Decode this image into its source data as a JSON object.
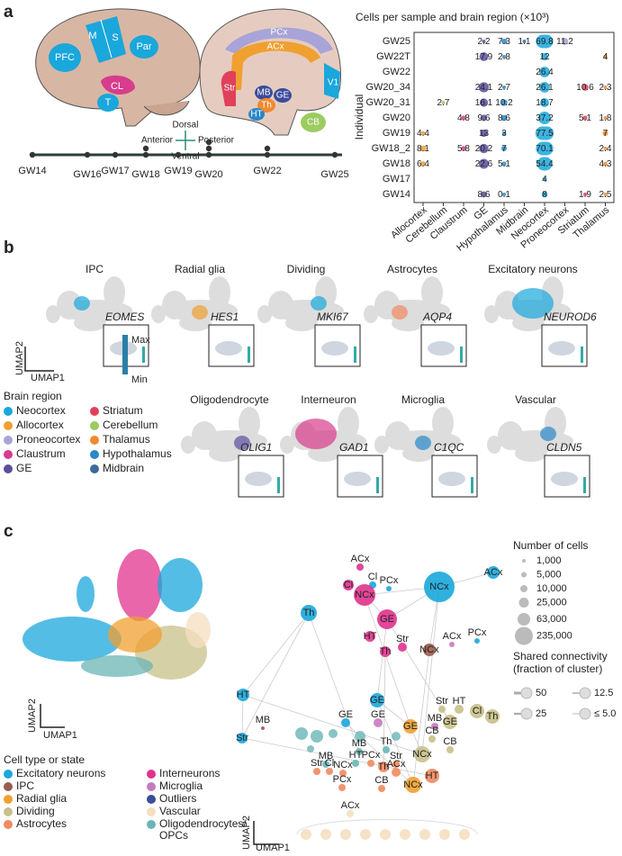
{
  "panel_a": {
    "letter": "a",
    "brain_left": [
      "PFC",
      "M",
      "S",
      "Par",
      "CL",
      "T"
    ],
    "brain_right": [
      "PCx",
      "ACx",
      "Str",
      "MB",
      "GE",
      "Th",
      "HT",
      "V1",
      "CB"
    ],
    "directions": {
      "dorsal": "Dorsal",
      "ventral": "Ventral",
      "anterior": "Anterior",
      "posterior": "Posterior"
    },
    "timeline": [
      "GW14",
      "GW16",
      "GW17",
      "GW18",
      "GW19",
      "GW20",
      "GW22",
      "GW25"
    ],
    "grid": {
      "title": "Cells per sample and brain region (×10³)",
      "y_label": "Individual",
      "columns": [
        "Allocortex",
        "Cerebellum",
        "Claustrum",
        "GE",
        "Hypothalamus",
        "Midbrain",
        "Neocortex",
        "Proneocortex",
        "Striatum",
        "Thalamus"
      ],
      "rows": [
        {
          "name": "GW25",
          "values": [
            null,
            null,
            null,
            2.2,
            7.3,
            1.1,
            69.8,
            11.2,
            null,
            null
          ]
        },
        {
          "name": "GW22T",
          "values": [
            null,
            null,
            null,
            17.9,
            2.8,
            null,
            12,
            null,
            null,
            4
          ]
        },
        {
          "name": "GW22",
          "values": [
            null,
            null,
            null,
            null,
            null,
            null,
            26.4,
            null,
            null,
            null
          ]
        },
        {
          "name": "GW20_34",
          "values": [
            null,
            null,
            null,
            24.1,
            2.7,
            null,
            26.1,
            null,
            10.6,
            2.3
          ]
        },
        {
          "name": "GW20_31",
          "values": [
            null,
            2.7,
            null,
            16.1,
            10.2,
            null,
            18.7,
            null,
            null,
            null
          ]
        },
        {
          "name": "GW20",
          "values": [
            null,
            null,
            4.8,
            9.6,
            8.6,
            null,
            37.2,
            null,
            5.1,
            1.8
          ]
        },
        {
          "name": "GW19",
          "values": [
            4.4,
            null,
            null,
            13,
            3,
            null,
            77.5,
            null,
            null,
            7
          ]
        },
        {
          "name": "GW18_2",
          "values": [
            8.1,
            null,
            5.8,
            20.2,
            7,
            null,
            70.1,
            null,
            null,
            2.4
          ]
        },
        {
          "name": "GW18",
          "values": [
            6.4,
            null,
            null,
            22.6,
            5.1,
            null,
            54.4,
            null,
            null,
            4.3
          ]
        },
        {
          "name": "GW17",
          "values": [
            null,
            null,
            null,
            null,
            null,
            null,
            4,
            null,
            null,
            null
          ]
        },
        {
          "name": "GW14",
          "values": [
            null,
            null,
            null,
            8.6,
            0.1,
            null,
            8,
            null,
            1.9,
            2.5
          ]
        }
      ]
    }
  },
  "panel_b": {
    "letter": "b",
    "panels": [
      {
        "title": "IPC",
        "gene": "EOMES",
        "color": "#1aa7dc"
      },
      {
        "title": "Radial glia",
        "gene": "HES1",
        "color": "#f0a030"
      },
      {
        "title": "Dividing",
        "gene": "MKI67",
        "color": "#1aa7dc"
      },
      {
        "title": "Astrocytes",
        "gene": "AQP4",
        "color": "#f08a60"
      },
      {
        "title": "Excitatory neurons",
        "gene": "NEUROD6",
        "color": "#1aa7dc"
      },
      {
        "title": "Oligodendrocyte",
        "gene": "OLIG1",
        "color": "#5a4f9c"
      },
      {
        "title": "Interneuron",
        "gene": "GAD1",
        "color": "#d83c8c"
      },
      {
        "title": "Microglia",
        "gene": "C1QC",
        "color": "#2a88c8"
      },
      {
        "title": "Vascular",
        "gene": "CLDN5",
        "color": "#2a88c8"
      }
    ],
    "colorbar": {
      "max": "Max",
      "min": "Min"
    },
    "umap2": "UMAP2",
    "umap1": "UMAP1",
    "legend_title": "Brain region",
    "regions": [
      {
        "name": "Neocortex",
        "color": "#1aa7dc"
      },
      {
        "name": "Allocortex",
        "color": "#f0a030"
      },
      {
        "name": "Proneocortex",
        "color": "#a8a4d8"
      },
      {
        "name": "Claustrum",
        "color": "#d83c8c"
      },
      {
        "name": "GE",
        "color": "#5a4f9c"
      },
      {
        "name": "Striatum",
        "color": "#e0405a"
      },
      {
        "name": "Cerebellum",
        "color": "#9ccc60"
      },
      {
        "name": "Thalamus",
        "color": "#f08a30"
      },
      {
        "name": "Hypothalamus",
        "color": "#2a88c8"
      },
      {
        "name": "Midbrain",
        "color": "#3a6a9a"
      }
    ]
  },
  "panel_c": {
    "letter": "c",
    "umap2": "UMAP2",
    "umap1": "UMAP1",
    "legend_title": "Cell type or state",
    "cell_types": [
      {
        "name": [
          "Excitatory neurons"
        ],
        "color": "#1aa7dc"
      },
      {
        "name": [
          "IPC"
        ],
        "color": "#9b5b4f"
      },
      {
        "name": [
          "Radial glia"
        ],
        "color": "#f0a030"
      },
      {
        "name": [
          "Dividing"
        ],
        "color": "#c8c08a"
      },
      {
        "name": [
          "Astrocytes"
        ],
        "color": "#f08a60"
      },
      {
        "name": [
          "Interneurons"
        ],
        "color": "#e0338c"
      },
      {
        "name": [
          "Microglia"
        ],
        "color": "#c77bbf"
      },
      {
        "name": [
          "Outliers"
        ],
        "color": "#3b4c9b"
      },
      {
        "name": [
          "Vascular"
        ],
        "color": "#f5dfc0"
      },
      {
        "name": [
          "Oligodendrocytes/",
          "OPCs"
        ],
        "color": "#6bb5b5"
      }
    ],
    "size_title": "Number of cells",
    "sizes": [
      "1,000",
      "5,000",
      "10,000",
      "25,000",
      "63,000",
      "235,000"
    ],
    "connectivity_title": [
      "Shared connectivity",
      "(fraction of cluster)"
    ],
    "connectivity": [
      "50",
      "12.5",
      "25",
      "≤ 5.0"
    ],
    "nodes": [
      {
        "label": "ACx",
        "color": "#e0338c"
      },
      {
        "label": "Cl",
        "color": "#e0338c"
      },
      {
        "label": "Cl",
        "color": "#1aa7dc"
      },
      {
        "label": "NCx",
        "color": "#e0338c"
      },
      {
        "label": "PCx",
        "color": "#1aa7dc"
      },
      {
        "label": "GE",
        "color": "#e0338c"
      },
      {
        "label": "NCx",
        "color": "#1aa7dc"
      },
      {
        "label": "ACx",
        "color": "#1aa7dc"
      },
      {
        "label": "Th",
        "color": "#1aa7dc"
      },
      {
        "label": "HT",
        "color": "#e0338c"
      },
      {
        "label": "Th",
        "color": "#e0338c"
      },
      {
        "label": "Str",
        "color": "#e0338c"
      },
      {
        "label": "NCx",
        "color": "#9b5b4f"
      },
      {
        "label": "ACx",
        "color": "#c77bbf"
      },
      {
        "label": "PCx",
        "color": "#1aa7dc"
      },
      {
        "label": "GE",
        "color": "#1aa7dc"
      },
      {
        "label": "Str",
        "color": "#c8c08a"
      },
      {
        "label": "HT",
        "color": "#c8c08a"
      },
      {
        "label": "Cl",
        "color": "#c8c08a"
      },
      {
        "label": "Th",
        "color": "#c8c08a"
      },
      {
        "label": "GE",
        "color": "#1aa7dc"
      },
      {
        "label": "GE",
        "color": "#c77bbf"
      },
      {
        "label": "GE",
        "color": "#f0a030"
      },
      {
        "label": "MB",
        "color": "#c77bbf"
      },
      {
        "label": "GE",
        "color": "#c8c08a"
      },
      {
        "label": "CB",
        "color": "#c8c08a"
      },
      {
        "label": "CB",
        "color": "#c8c08a"
      },
      {
        "label": "NCx",
        "color": "#c8c08a"
      },
      {
        "label": "Th",
        "color": "#6bb5b5"
      },
      {
        "label": "MB",
        "color": "#6bb5b5"
      },
      {
        "label": "MB",
        "color": "#6bb5b5"
      },
      {
        "label": "HT",
        "color": "#6bb5b5"
      },
      {
        "label": "PCx",
        "color": "#f08a60"
      },
      {
        "label": "Th",
        "color": "#f08a60"
      },
      {
        "label": "Str",
        "color": "#f08a60"
      },
      {
        "label": "Str",
        "color": "#f08a60"
      },
      {
        "label": "Cl",
        "color": "#f08a60"
      },
      {
        "label": "NCx",
        "color": "#f08a60"
      },
      {
        "label": "ACx",
        "color": "#f08a60"
      },
      {
        "label": "HT",
        "color": "#f08a60"
      },
      {
        "label": "NCx",
        "color": "#f0a030"
      },
      {
        "label": "PCx",
        "color": "#f08a60"
      },
      {
        "label": "CB",
        "color": "#f08a60"
      },
      {
        "label": "HT",
        "color": "#1aa7dc"
      },
      {
        "label": "Str",
        "color": "#1aa7dc"
      },
      {
        "label": "MB",
        "color": "#9b5b4f"
      },
      {
        "label": "ACx",
        "color": "#f5dfc0"
      }
    ]
  }
}
